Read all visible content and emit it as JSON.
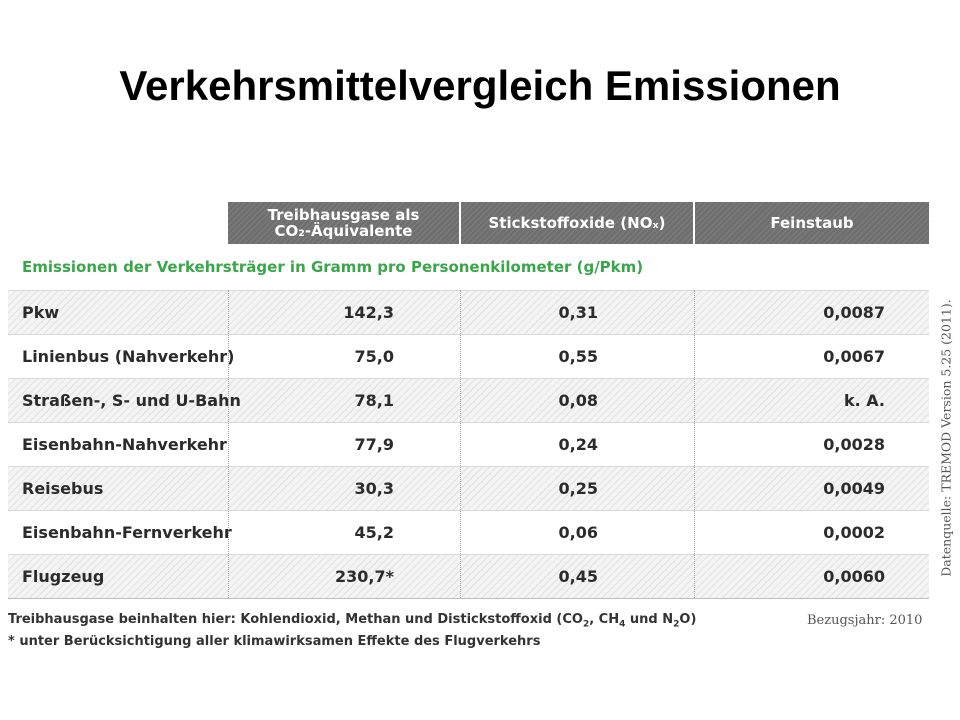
{
  "title": "Verkehrsmittelvergleich Emissionen",
  "header": {
    "ghg_line1": "Treibhausgase als",
    "ghg_line2": "CO₂-Äquivalente",
    "nox": "Stickstoffoxide (NOₓ)",
    "pm": "Feinstaub"
  },
  "subtitle": "Emissionen der Verkehrsträger in Gramm pro Personenkilometer (g/Pkm)",
  "rows": [
    {
      "label": "Pkw",
      "ghg": "142,3",
      "nox": "0,31",
      "pm": "0,0087"
    },
    {
      "label": "Linienbus (Nahverkehr)",
      "ghg": "75,0",
      "nox": "0,55",
      "pm": "0,0067"
    },
    {
      "label": "Straßen-, S- und U-Bahn",
      "ghg": "78,1",
      "nox": "0,08",
      "pm": "k. A."
    },
    {
      "label": "Eisenbahn-Nahverkehr",
      "ghg": "77,9",
      "nox": "0,24",
      "pm": "0,0028"
    },
    {
      "label": "Reisebus",
      "ghg": "30,3",
      "nox": "0,25",
      "pm": "0,0049"
    },
    {
      "label": "Eisenbahn-Fernverkehr",
      "ghg": "45,2",
      "nox": "0,06",
      "pm": "0,0002"
    },
    {
      "label": "Flugzeug",
      "ghg": "230,7*",
      "nox": "0,45",
      "pm": "0,0060"
    }
  ],
  "footnote": {
    "line1_text": "Treibhausgase beinhalten hier: Kohlendioxid, Methan und Distickstoffoxid (CO",
    "line1_co2_sub": "2",
    "line1_sep1": ", CH",
    "line1_ch4_sub": "4",
    "line1_sep2": " und N",
    "line1_n2o_sub": "2",
    "line1_end": "O)",
    "line2": "* unter Berücksichtigung aller klimawirksamen Effekte des Flugverkehrs"
  },
  "reference_year": "Bezugsjahr: 2010",
  "source": "Datenquelle: TREMOD Version 5.25 (2011)."
}
